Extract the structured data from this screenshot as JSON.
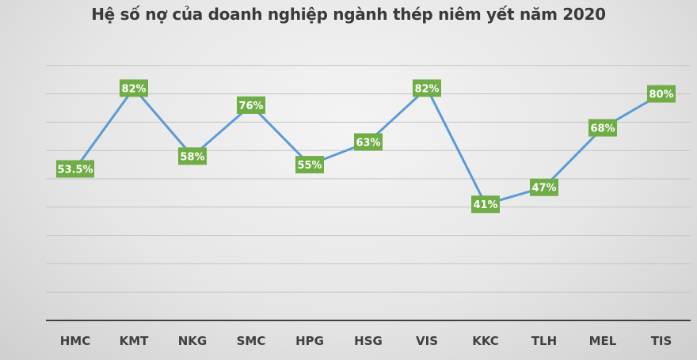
{
  "chart_data": {
    "type": "line",
    "title": "Hệ số nợ của doanh nghiệp ngành thép niêm yết năm 2020",
    "xlabel": "",
    "ylabel": "",
    "categories": [
      "HMC",
      "KMT",
      "NKG",
      "SMC",
      "HPG",
      "HSG",
      "VIS",
      "KKC",
      "TLH",
      "MEL",
      "TIS"
    ],
    "series": [
      {
        "name": "Hệ số nợ",
        "values": [
          53.5,
          82,
          58,
          76,
          55,
          63,
          82,
          41,
          47,
          68,
          80
        ],
        "labels": [
          "53.5%",
          "82%",
          "58%",
          "76%",
          "55%",
          "63%",
          "82%",
          "41%",
          "47%",
          "68%",
          "80%"
        ]
      }
    ],
    "ylim": [
      0,
      100
    ],
    "y_gridlines": [
      10,
      20,
      30,
      40,
      50,
      60,
      70,
      80,
      90
    ],
    "y_tick_labels_visible": false,
    "grid": true,
    "legend": "none",
    "colors": {
      "line": "#5b9bd5",
      "label_bg": "#70ad47",
      "label_text": "#ffffff",
      "gridline": "#c4c4c4",
      "axis": "#404040",
      "title": "#3a3a3a"
    }
  }
}
